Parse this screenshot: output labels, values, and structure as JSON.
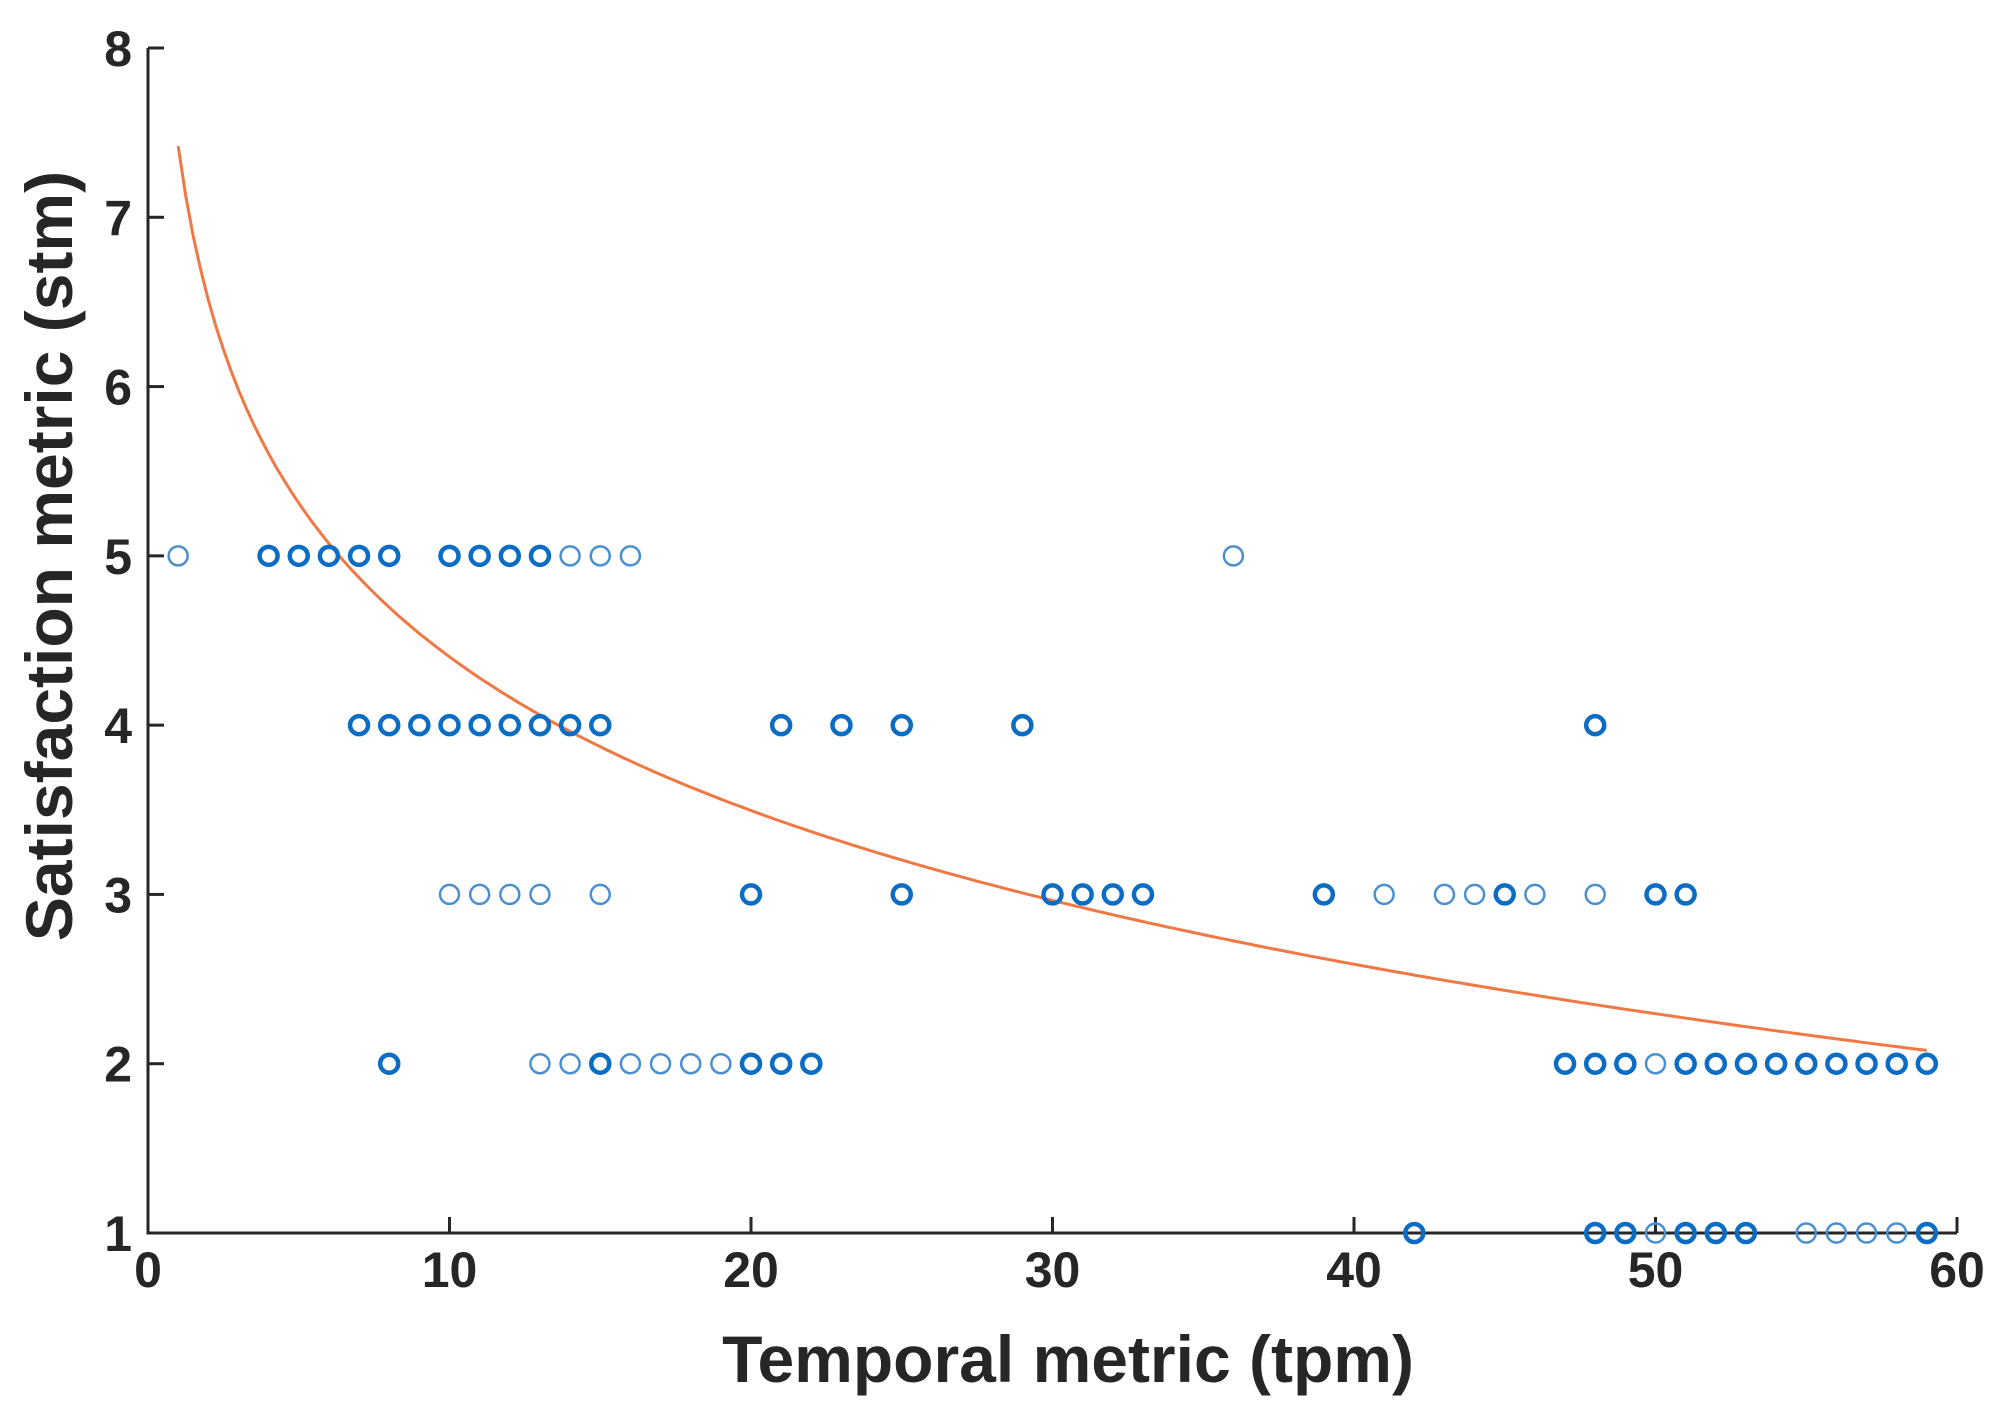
{
  "chart_data": {
    "type": "scatter",
    "title": "",
    "xlabel": "Temporal metric (tpm)",
    "ylabel": "Satisfaction metric (stm)",
    "xlim": [
      0,
      60
    ],
    "ylim": [
      1,
      8
    ],
    "xticks": [
      0,
      10,
      20,
      30,
      40,
      50,
      60
    ],
    "yticks": [
      1,
      2,
      3,
      4,
      5,
      6,
      7,
      8
    ],
    "grid": false,
    "colors": {
      "points": "#0a6cc2",
      "points_light": "#4a90d0",
      "fit": "#f07845",
      "axis": "#262626"
    },
    "series": [
      {
        "name": "observations",
        "type": "scatter",
        "points": [
          [
            1,
            5,
            1
          ],
          [
            4,
            5,
            2
          ],
          [
            5,
            5,
            2
          ],
          [
            6,
            5,
            2
          ],
          [
            7,
            5,
            2
          ],
          [
            8,
            5,
            2
          ],
          [
            10,
            5,
            2
          ],
          [
            11,
            5,
            2
          ],
          [
            12,
            5,
            2
          ],
          [
            13,
            5,
            2
          ],
          [
            14,
            5,
            1
          ],
          [
            15,
            5,
            1
          ],
          [
            16,
            5,
            1
          ],
          [
            36,
            5,
            1
          ],
          [
            7,
            4,
            2
          ],
          [
            8,
            4,
            2
          ],
          [
            9,
            4,
            2
          ],
          [
            10,
            4,
            2
          ],
          [
            11,
            4,
            2
          ],
          [
            12,
            4,
            2
          ],
          [
            13,
            4,
            2
          ],
          [
            14,
            4,
            2
          ],
          [
            15,
            4,
            2
          ],
          [
            21,
            4,
            2
          ],
          [
            23,
            4,
            2
          ],
          [
            25,
            4,
            2
          ],
          [
            29,
            4,
            2
          ],
          [
            48,
            4,
            2
          ],
          [
            10,
            3,
            1
          ],
          [
            11,
            3,
            1
          ],
          [
            12,
            3,
            1
          ],
          [
            13,
            3,
            1
          ],
          [
            15,
            3,
            1
          ],
          [
            20,
            3,
            2
          ],
          [
            25,
            3,
            2
          ],
          [
            30,
            3,
            2
          ],
          [
            31,
            3,
            2
          ],
          [
            32,
            3,
            2
          ],
          [
            33,
            3,
            2
          ],
          [
            39,
            3,
            2
          ],
          [
            41,
            3,
            1
          ],
          [
            43,
            3,
            1
          ],
          [
            44,
            3,
            1
          ],
          [
            45,
            3,
            2
          ],
          [
            46,
            3,
            1
          ],
          [
            48,
            3,
            1
          ],
          [
            50,
            3,
            2
          ],
          [
            51,
            3,
            2
          ],
          [
            8,
            2,
            2
          ],
          [
            13,
            2,
            1
          ],
          [
            14,
            2,
            1
          ],
          [
            15,
            2,
            2
          ],
          [
            16,
            2,
            1
          ],
          [
            17,
            2,
            1
          ],
          [
            18,
            2,
            1
          ],
          [
            19,
            2,
            1
          ],
          [
            20,
            2,
            2
          ],
          [
            21,
            2,
            2
          ],
          [
            22,
            2,
            2
          ],
          [
            47,
            2,
            2
          ],
          [
            48,
            2,
            2
          ],
          [
            49,
            2,
            2
          ],
          [
            50,
            2,
            1
          ],
          [
            51,
            2,
            2
          ],
          [
            52,
            2,
            2
          ],
          [
            53,
            2,
            2
          ],
          [
            54,
            2,
            2
          ],
          [
            55,
            2,
            2
          ],
          [
            56,
            2,
            2
          ],
          [
            57,
            2,
            2
          ],
          [
            58,
            2,
            2
          ],
          [
            59,
            2,
            2
          ],
          [
            42,
            1,
            2
          ],
          [
            48,
            1,
            2
          ],
          [
            49,
            1,
            2
          ],
          [
            50,
            1,
            1
          ],
          [
            51,
            1,
            2
          ],
          [
            52,
            1,
            2
          ],
          [
            53,
            1,
            2
          ],
          [
            55,
            1,
            1
          ],
          [
            56,
            1,
            1
          ],
          [
            57,
            1,
            1
          ],
          [
            58,
            1,
            1
          ],
          [
            59,
            1,
            2
          ]
        ]
      },
      {
        "name": "fit",
        "type": "line",
        "equation": "y = 7.42 - 1.31 * ln(x)",
        "coef_a": 7.42,
        "coef_b": -1.31,
        "x_range": [
          1,
          59
        ]
      }
    ]
  }
}
